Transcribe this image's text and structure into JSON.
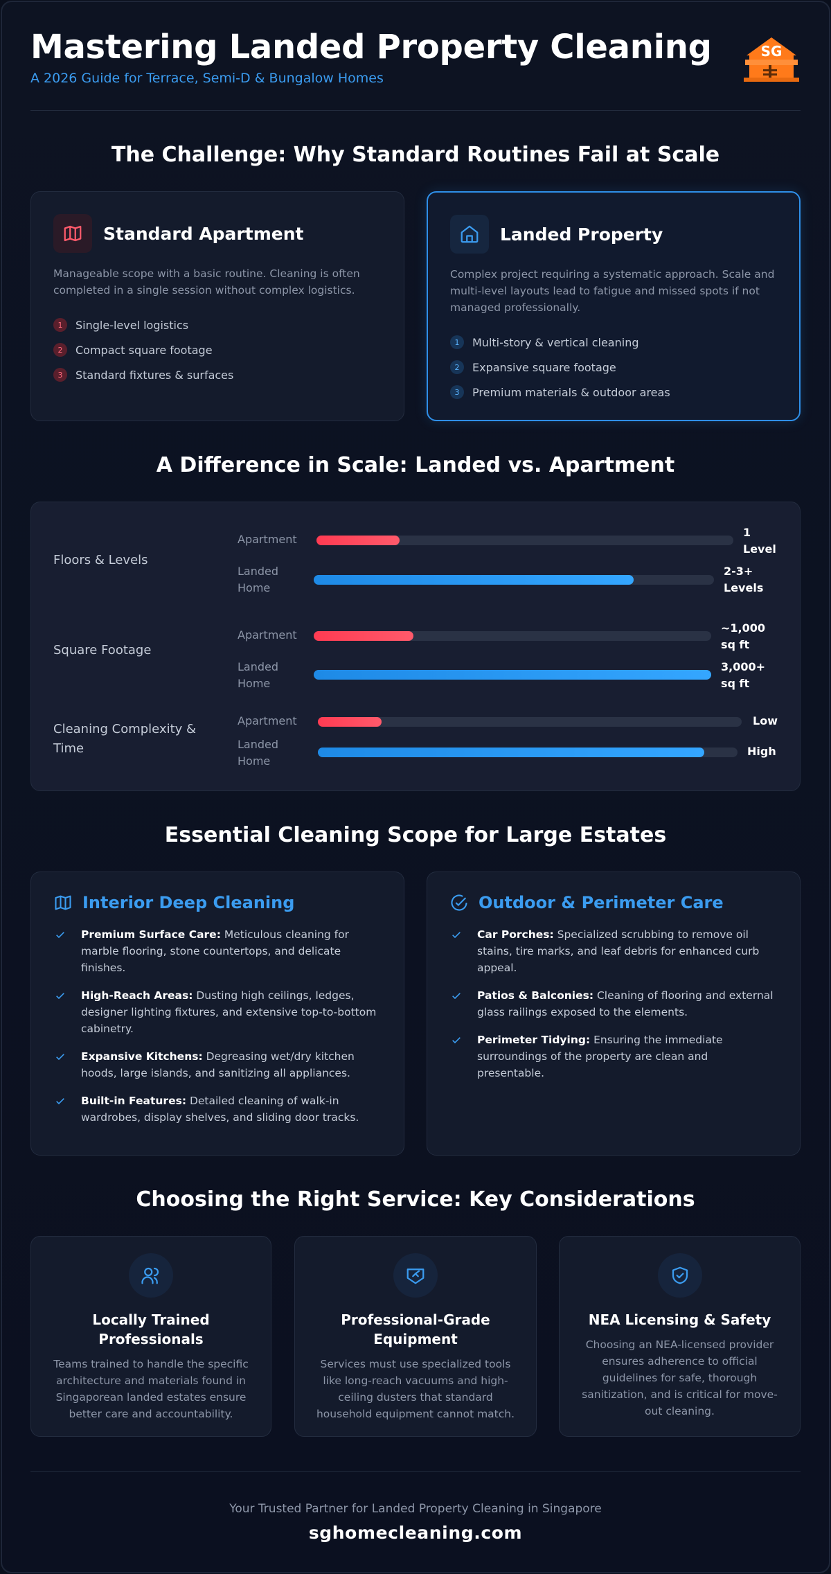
{
  "header": {
    "title": "Mastering Landed Property Cleaning",
    "subtitle": "A 2026 Guide for Terrace, Semi-D & Bungalow Homes",
    "logo_text": "SG",
    "logo_color": "#ff7a1a"
  },
  "challenge": {
    "title": "The Challenge: Why Standard Routines Fail at Scale",
    "apartment": {
      "icon": "map-icon",
      "title": "Standard Apartment",
      "desc": "Manageable scope with a basic routine. Cleaning is often completed in a single session without complex logistics.",
      "items": [
        "Single-level logistics",
        "Compact square footage",
        "Standard fixtures & surfaces"
      ]
    },
    "landed": {
      "icon": "home-icon",
      "title": "Landed Property",
      "desc": "Complex project requiring a systematic approach. Scale and multi-level layouts lead to fatigue and missed spots if not managed professionally.",
      "items": [
        "Multi-story & vertical cleaning",
        "Expansive square footage",
        "Premium materials & outdoor areas"
      ]
    }
  },
  "scale": {
    "title": "A Difference in Scale: Landed vs. Apartment",
    "apartment_label": "Apartment",
    "landed_label_1": "Landed",
    "landed_label_2": "Home",
    "rows": [
      {
        "label_1": "Floors & Levels",
        "label_2": "",
        "apartment": {
          "level": 0.2,
          "value_1": "1",
          "value_2": "Level"
        },
        "landed": {
          "level": 0.8,
          "value_1": "2-3+",
          "value_2": "Levels"
        }
      },
      {
        "label_1": "Square Footage",
        "label_2": "",
        "apartment": {
          "level": 0.25,
          "value_1": "~1,000",
          "value_2": "sq ft"
        },
        "landed": {
          "level": 1.0,
          "value_1": "3,000+",
          "value_2": "sq ft"
        }
      },
      {
        "label_1": "Cleaning Complexity &",
        "label_2": "Time",
        "apartment": {
          "level": 0.15,
          "value_1": "Low",
          "value_2": ""
        },
        "landed": {
          "level": 0.92,
          "value_1": "High",
          "value_2": ""
        }
      }
    ],
    "colors": {
      "apartment": "#ff3b52",
      "landed": "#1e8ae6"
    }
  },
  "scope": {
    "title": "Essential Cleaning Scope for Large Estates",
    "interior": {
      "icon": "map-icon",
      "title": "Interior Deep Cleaning",
      "items": [
        {
          "bold": "Premium Surface Care:",
          "text": " Meticulous cleaning for marble flooring, stone countertops, and delicate finishes."
        },
        {
          "bold": "High-Reach Areas:",
          "text": " Dusting high ceilings, ledges, designer lighting fixtures, and extensive top-to-bottom cabinetry."
        },
        {
          "bold": "Expansive Kitchens:",
          "text": " Degreasing wet/dry kitchen hoods, large islands, and sanitizing all appliances."
        },
        {
          "bold": "Built-in Features:",
          "text": " Detailed cleaning of walk-in wardrobes, display shelves, and sliding door tracks."
        }
      ]
    },
    "outdoor": {
      "icon": "check-circle-icon",
      "title": "Outdoor & Perimeter Care",
      "items": [
        {
          "bold": "Car Porches:",
          "text": " Specialized scrubbing to remove oil stains, tire marks, and leaf debris for enhanced curb appeal."
        },
        {
          "bold": "Patios & Balconies:",
          "text": " Cleaning of flooring and external glass railings exposed to the elements."
        },
        {
          "bold": "Perimeter Tidying:",
          "text": " Ensuring the immediate surroundings of the property are clean and presentable."
        }
      ]
    }
  },
  "considerations": {
    "title": "Choosing the Right Service: Key Considerations",
    "cards": [
      {
        "icon": "users-icon",
        "title": "Locally Trained Professionals",
        "desc": "Teams trained to handle the specific architecture and materials found in Singaporean landed estates ensure better care and accountability."
      },
      {
        "icon": "equipment-icon",
        "title": "Professional-Grade Equipment",
        "desc": "Services must use specialized tools like long-reach vacuums and high-ceiling dusters that standard household equipment cannot match."
      },
      {
        "icon": "shield-check-icon",
        "title": "NEA Licensing & Safety",
        "desc": "Choosing an NEA-licensed provider ensures adherence to official guidelines for safe, thorough sanitization, and is critical for move-out cleaning."
      }
    ]
  },
  "footer": {
    "tagline": "Your Trusted Partner for Landed Property Cleaning in Singapore",
    "site": "sghomecleaning.com"
  }
}
